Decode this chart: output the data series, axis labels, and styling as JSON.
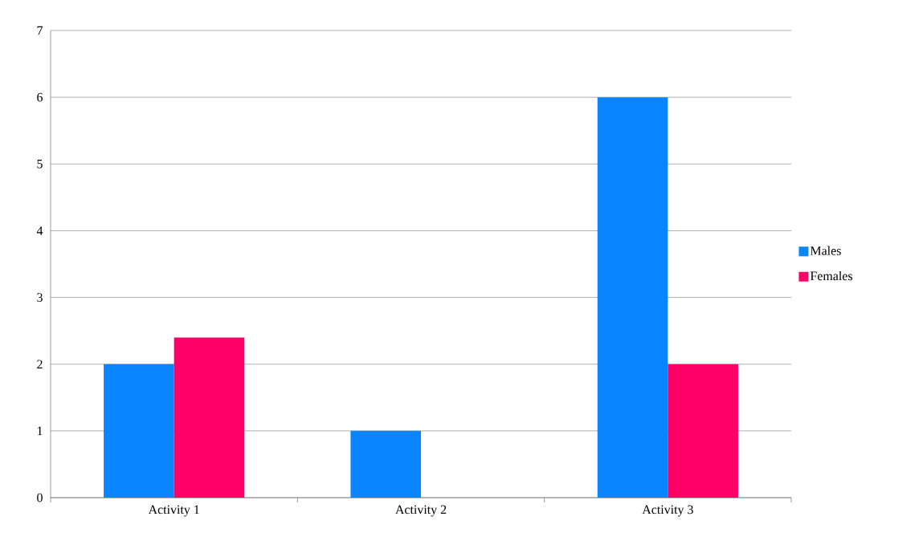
{
  "chart_data": {
    "type": "bar",
    "categories": [
      "Activity 1",
      "Activity 2",
      "Activity 3"
    ],
    "series": [
      {
        "name": "Males",
        "color": "#0a84ff",
        "values": [
          2,
          1,
          6
        ]
      },
      {
        "name": "Females",
        "color": "#ff0066",
        "values": [
          2.4,
          0,
          2
        ]
      }
    ],
    "ylim": [
      0,
      7
    ],
    "yticks": [
      0,
      1,
      2,
      3,
      4,
      5,
      6,
      7
    ],
    "grid": "y",
    "legend": "right"
  }
}
